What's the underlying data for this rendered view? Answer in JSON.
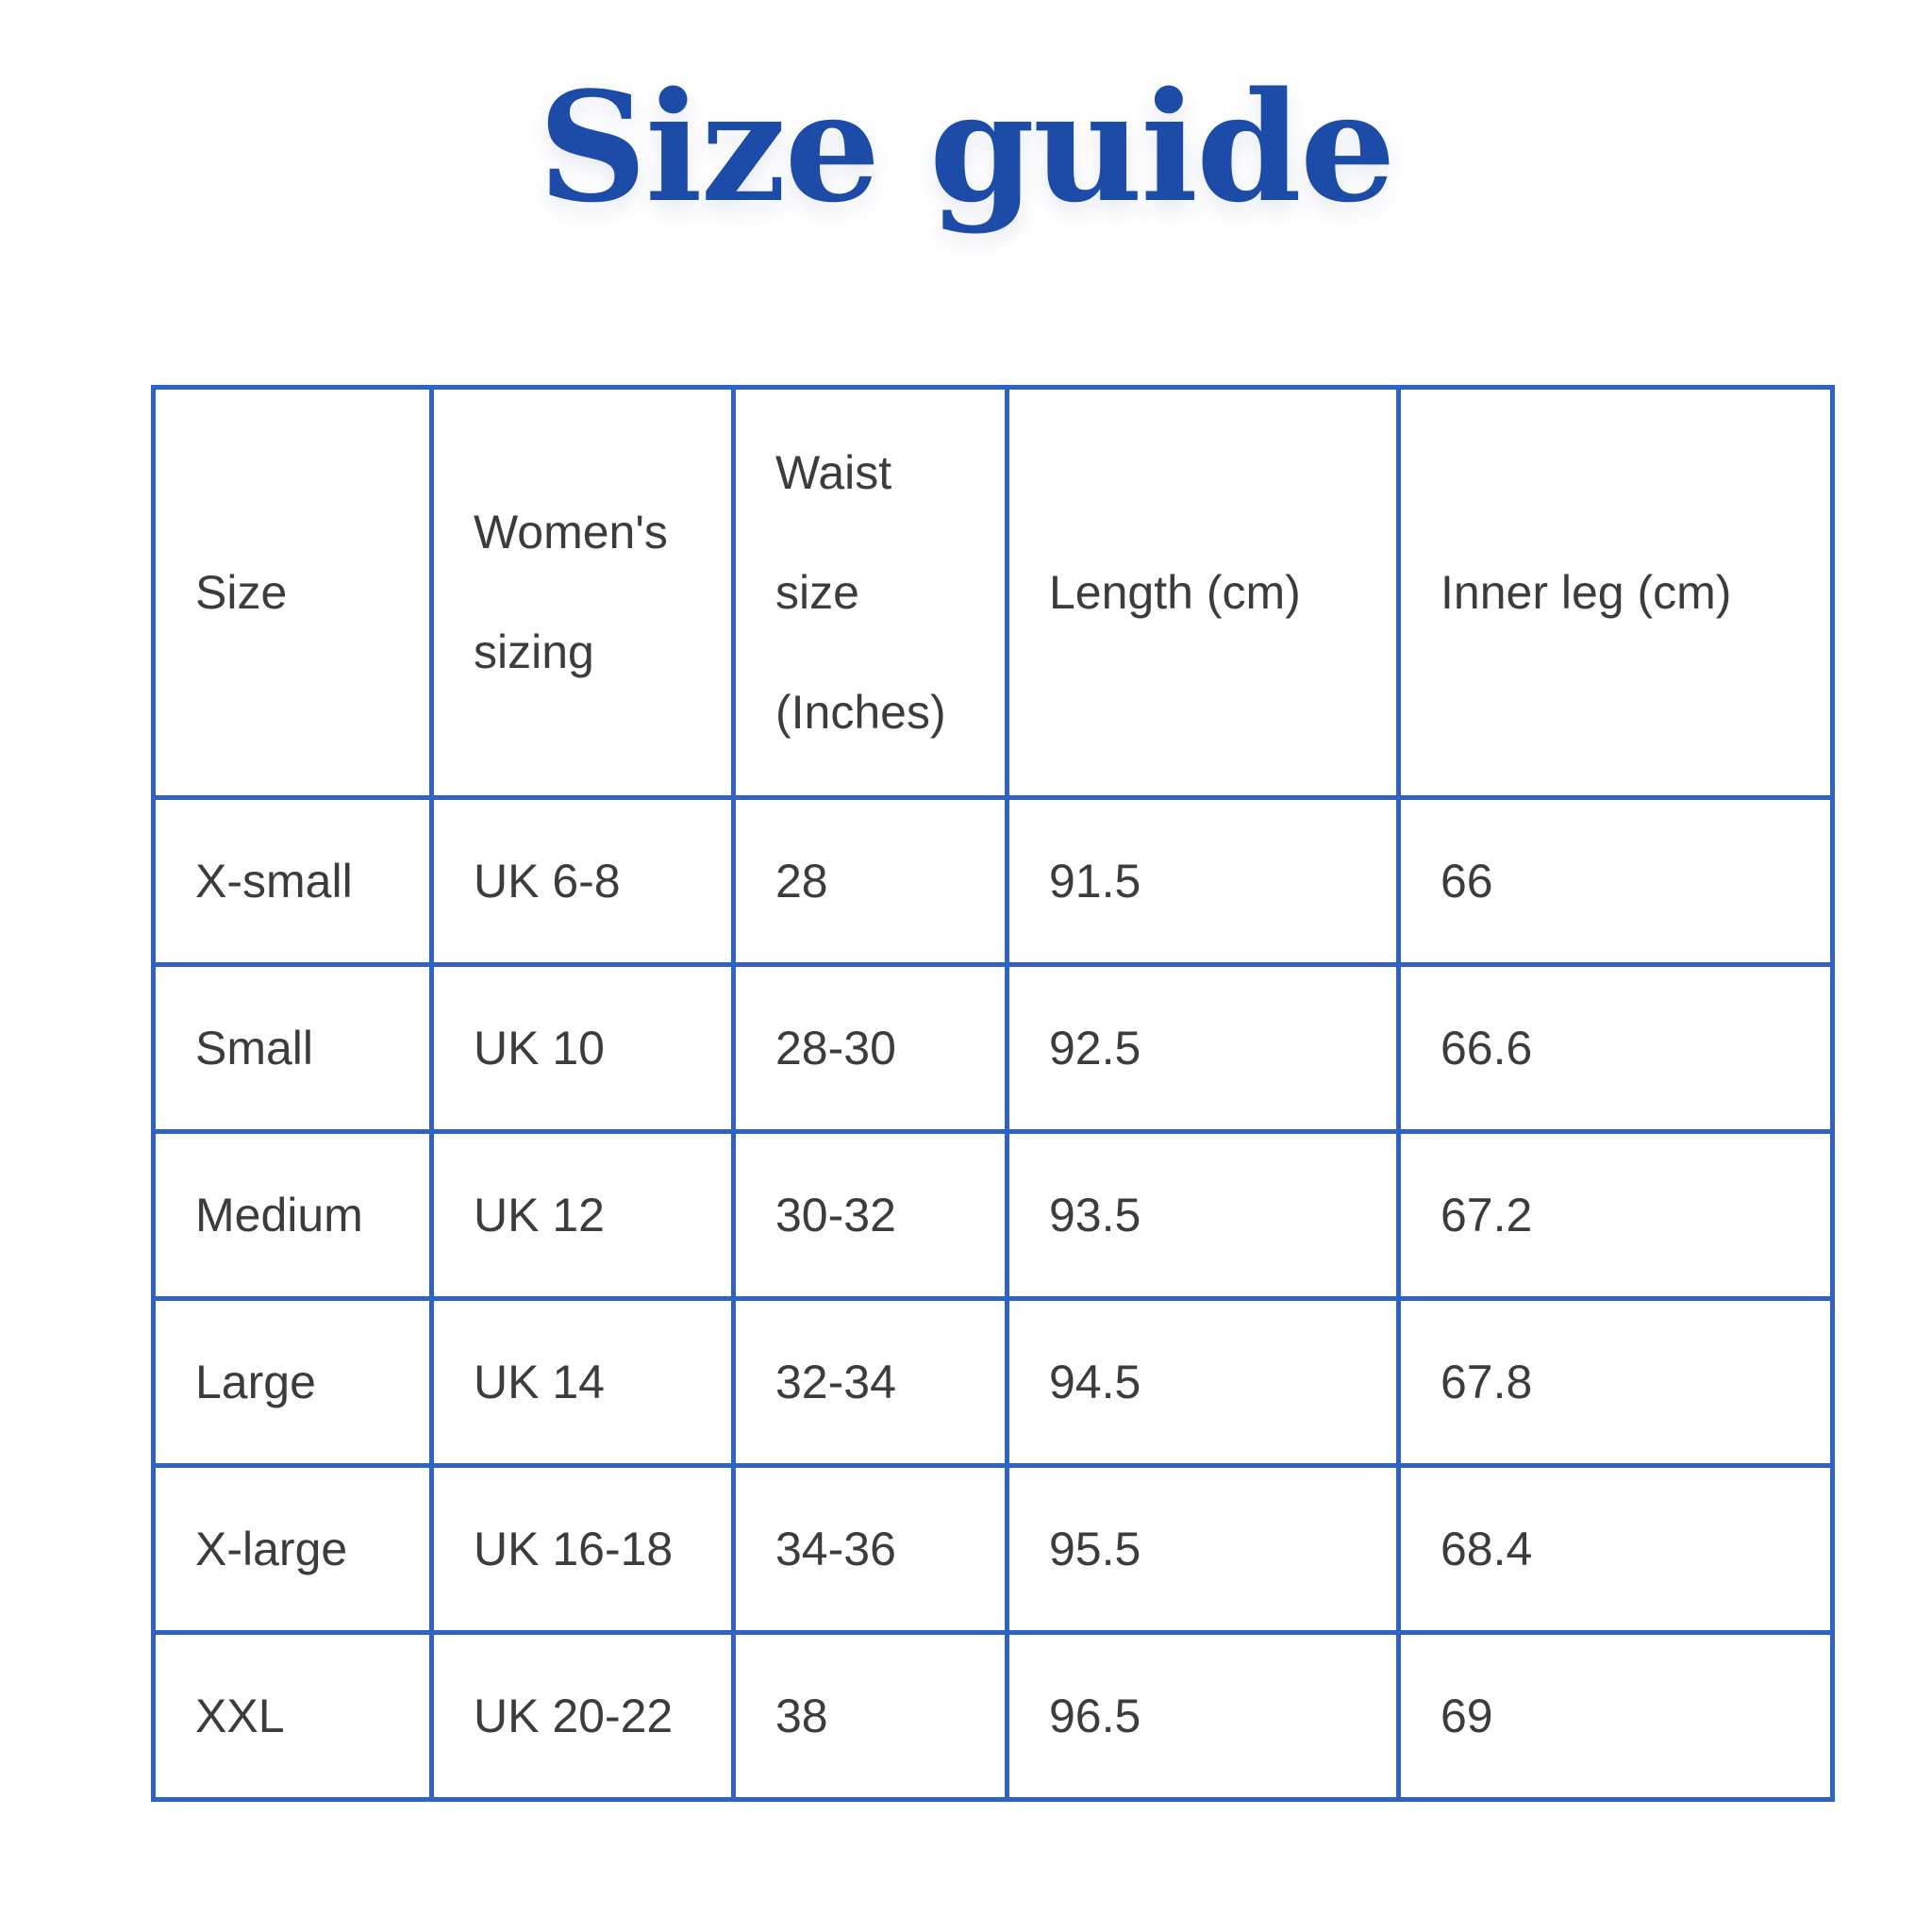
{
  "page": {
    "title": "Size guide"
  },
  "colors": {
    "title_blue": "#1d4ba8",
    "table_border_blue": "#2f62c4",
    "cell_text": "#3c3c3c",
    "background": "#ffffff"
  },
  "table": {
    "headers": [
      {
        "id": "size",
        "label": "Size"
      },
      {
        "id": "womens_sizing",
        "label": "Women's\nsizing"
      },
      {
        "id": "waist_size_inches",
        "label": "Waist\nsize\n(Inches)"
      },
      {
        "id": "length_cm",
        "label": "Length (cm)"
      },
      {
        "id": "inner_leg_cm",
        "label": "Inner leg (cm)"
      }
    ],
    "rows": [
      {
        "cells": [
          "X-small",
          "UK 6-8",
          "28",
          "91.5",
          "66"
        ]
      },
      {
        "cells": [
          "Small",
          "UK 10",
          "28-30",
          "92.5",
          "66.6"
        ]
      },
      {
        "cells": [
          "Medium",
          "UK 12",
          "30-32",
          "93.5",
          "67.2"
        ]
      },
      {
        "cells": [
          "Large",
          "UK 14",
          "32-34",
          "94.5",
          "67.8"
        ]
      },
      {
        "cells": [
          "X-large",
          "UK 16-18",
          "34-36",
          "95.5",
          "68.4"
        ]
      },
      {
        "cells": [
          "XXL",
          "UK 20-22",
          "38",
          "96.5",
          "69"
        ]
      }
    ]
  }
}
